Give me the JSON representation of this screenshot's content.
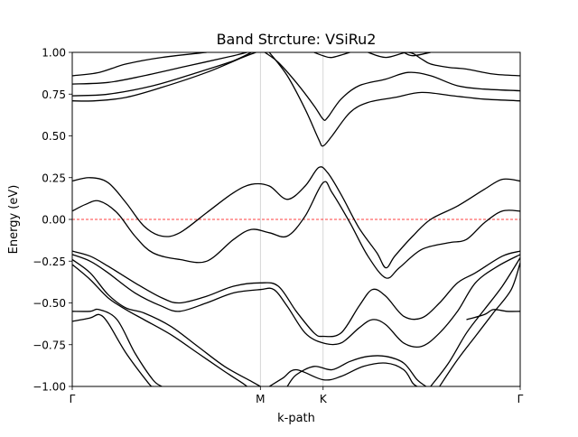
{
  "chart_data": {
    "type": "line",
    "title": "Band Strcture: VSiRu2",
    "xlabel": "k-path",
    "ylabel": "Energy (eV)",
    "xlim": [
      0,
      1
    ],
    "ylim": [
      -1.0,
      1.0
    ],
    "y_ticks": [
      "−1.00",
      "−0.75",
      "−0.50",
      "−0.25",
      "0.00",
      "0.25",
      "0.50",
      "0.75",
      "1.00"
    ],
    "y_tick_values": [
      -1.0,
      -0.75,
      -0.5,
      -0.25,
      0.0,
      0.25,
      0.5,
      0.75,
      1.0
    ],
    "kpoints": [
      {
        "label": "Γ",
        "x": 0.0
      },
      {
        "label": "M",
        "x": 0.42
      },
      {
        "label": "K",
        "x": 0.56
      },
      {
        "label": "Γ",
        "x": 1.0
      }
    ],
    "fermi_level": 0.0,
    "fermi_color": "#ff0000",
    "band_color": "#000000",
    "series": [
      {
        "values": [
          [
            0.0,
            0.86
          ],
          [
            0.06,
            0.88
          ],
          [
            0.12,
            0.93
          ],
          [
            0.2,
            0.97
          ],
          [
            0.3,
            1.0
          ]
        ]
      },
      {
        "values": [
          [
            0.0,
            0.81
          ],
          [
            0.08,
            0.82
          ],
          [
            0.16,
            0.86
          ],
          [
            0.26,
            0.92
          ],
          [
            0.36,
            0.98
          ],
          [
            0.39,
            1.0
          ]
        ]
      },
      {
        "values": [
          [
            0.0,
            0.74
          ],
          [
            0.08,
            0.75
          ],
          [
            0.18,
            0.8
          ],
          [
            0.28,
            0.88
          ],
          [
            0.36,
            0.95
          ],
          [
            0.4,
            1.0
          ]
        ]
      },
      {
        "values": [
          [
            0.0,
            0.71
          ],
          [
            0.05,
            0.71
          ],
          [
            0.12,
            0.73
          ],
          [
            0.2,
            0.79
          ],
          [
            0.3,
            0.88
          ],
          [
            0.38,
            0.97
          ],
          [
            0.41,
            1.0
          ]
        ]
      },
      {
        "values": [
          [
            0.43,
            1.0
          ],
          [
            0.46,
            0.94
          ],
          [
            0.5,
            0.82
          ],
          [
            0.54,
            0.68
          ],
          [
            0.56,
            0.6
          ],
          [
            0.57,
            0.61
          ],
          [
            0.6,
            0.72
          ],
          [
            0.64,
            0.8
          ],
          [
            0.7,
            0.84
          ],
          [
            0.75,
            0.88
          ],
          [
            0.8,
            0.86
          ],
          [
            0.86,
            0.8
          ],
          [
            0.92,
            0.78
          ],
          [
            1.0,
            0.77
          ]
        ]
      },
      {
        "values": [
          [
            0.44,
            1.0
          ],
          [
            0.48,
            0.86
          ],
          [
            0.52,
            0.66
          ],
          [
            0.55,
            0.48
          ],
          [
            0.56,
            0.44
          ],
          [
            0.58,
            0.5
          ],
          [
            0.62,
            0.64
          ],
          [
            0.66,
            0.7
          ],
          [
            0.72,
            0.73
          ],
          [
            0.78,
            0.76
          ],
          [
            0.85,
            0.74
          ],
          [
            0.92,
            0.72
          ],
          [
            1.0,
            0.71
          ]
        ]
      },
      {
        "values": [
          [
            0.54,
            1.0
          ],
          [
            0.56,
            0.98
          ],
          [
            0.58,
            0.97
          ],
          [
            0.62,
            1.0
          ]
        ]
      },
      {
        "values": [
          [
            0.66,
            1.0
          ],
          [
            0.7,
            0.97
          ],
          [
            0.75,
            1.0
          ],
          [
            0.78,
            0.96
          ],
          [
            0.8,
            0.93
          ],
          [
            0.84,
            0.91
          ],
          [
            0.88,
            0.9
          ],
          [
            0.94,
            0.87
          ],
          [
            1.0,
            0.86
          ]
        ]
      },
      {
        "values": [
          [
            0.74,
            1.0
          ],
          [
            0.76,
            0.98
          ],
          [
            0.8,
            1.0
          ]
        ]
      },
      {
        "values": [
          [
            0.0,
            0.23
          ],
          [
            0.04,
            0.25
          ],
          [
            0.08,
            0.22
          ],
          [
            0.12,
            0.1
          ],
          [
            0.16,
            -0.04
          ],
          [
            0.2,
            -0.1
          ],
          [
            0.24,
            -0.08
          ],
          [
            0.3,
            0.04
          ],
          [
            0.36,
            0.16
          ],
          [
            0.4,
            0.21
          ],
          [
            0.44,
            0.2
          ],
          [
            0.48,
            0.12
          ],
          [
            0.52,
            0.2
          ],
          [
            0.55,
            0.31
          ],
          [
            0.57,
            0.28
          ],
          [
            0.6,
            0.15
          ],
          [
            0.64,
            -0.05
          ],
          [
            0.68,
            -0.2
          ],
          [
            0.7,
            -0.29
          ],
          [
            0.72,
            -0.22
          ],
          [
            0.76,
            -0.1
          ],
          [
            0.8,
            0.0
          ],
          [
            0.86,
            0.08
          ],
          [
            0.92,
            0.18
          ],
          [
            0.96,
            0.24
          ],
          [
            1.0,
            0.23
          ]
        ]
      },
      {
        "values": [
          [
            0.0,
            0.05
          ],
          [
            0.03,
            0.09
          ],
          [
            0.06,
            0.11
          ],
          [
            0.1,
            0.04
          ],
          [
            0.14,
            -0.1
          ],
          [
            0.18,
            -0.2
          ],
          [
            0.24,
            -0.24
          ],
          [
            0.3,
            -0.25
          ],
          [
            0.36,
            -0.12
          ],
          [
            0.4,
            -0.06
          ],
          [
            0.44,
            -0.08
          ],
          [
            0.48,
            -0.1
          ],
          [
            0.52,
            0.02
          ],
          [
            0.56,
            0.22
          ],
          [
            0.58,
            0.16
          ],
          [
            0.62,
            -0.02
          ],
          [
            0.66,
            -0.22
          ],
          [
            0.7,
            -0.35
          ],
          [
            0.73,
            -0.29
          ],
          [
            0.78,
            -0.18
          ],
          [
            0.84,
            -0.14
          ],
          [
            0.88,
            -0.12
          ],
          [
            0.92,
            -0.02
          ],
          [
            0.96,
            0.05
          ],
          [
            1.0,
            0.05
          ]
        ]
      },
      {
        "values": [
          [
            0.0,
            -0.19
          ],
          [
            0.04,
            -0.22
          ],
          [
            0.08,
            -0.28
          ],
          [
            0.14,
            -0.38
          ],
          [
            0.2,
            -0.47
          ],
          [
            0.24,
            -0.5
          ],
          [
            0.3,
            -0.46
          ],
          [
            0.36,
            -0.4
          ],
          [
            0.42,
            -0.38
          ],
          [
            0.46,
            -0.4
          ],
          [
            0.5,
            -0.55
          ],
          [
            0.54,
            -0.68
          ],
          [
            0.56,
            -0.7
          ],
          [
            0.6,
            -0.68
          ],
          [
            0.64,
            -0.52
          ],
          [
            0.67,
            -0.42
          ],
          [
            0.7,
            -0.46
          ],
          [
            0.74,
            -0.58
          ],
          [
            0.78,
            -0.59
          ],
          [
            0.82,
            -0.5
          ],
          [
            0.86,
            -0.38
          ],
          [
            0.9,
            -0.32
          ],
          [
            0.96,
            -0.22
          ],
          [
            1.0,
            -0.19
          ]
        ]
      },
      {
        "values": [
          [
            0.0,
            -0.21
          ],
          [
            0.04,
            -0.25
          ],
          [
            0.08,
            -0.32
          ],
          [
            0.14,
            -0.44
          ],
          [
            0.2,
            -0.52
          ],
          [
            0.24,
            -0.55
          ],
          [
            0.3,
            -0.5
          ],
          [
            0.36,
            -0.44
          ],
          [
            0.42,
            -0.42
          ],
          [
            0.45,
            -0.42
          ],
          [
            0.48,
            -0.52
          ],
          [
            0.52,
            -0.68
          ],
          [
            0.56,
            -0.74
          ],
          [
            0.6,
            -0.74
          ],
          [
            0.64,
            -0.65
          ],
          [
            0.67,
            -0.6
          ],
          [
            0.7,
            -0.63
          ],
          [
            0.74,
            -0.74
          ],
          [
            0.78,
            -0.76
          ],
          [
            0.82,
            -0.68
          ],
          [
            0.86,
            -0.55
          ],
          [
            0.9,
            -0.38
          ],
          [
            0.95,
            -0.28
          ],
          [
            1.0,
            -0.21
          ]
        ]
      },
      {
        "values": [
          [
            0.0,
            -0.24
          ],
          [
            0.04,
            -0.32
          ],
          [
            0.08,
            -0.45
          ],
          [
            0.12,
            -0.53
          ],
          [
            0.16,
            -0.56
          ],
          [
            0.22,
            -0.64
          ],
          [
            0.28,
            -0.76
          ],
          [
            0.34,
            -0.88
          ],
          [
            0.4,
            -0.97
          ],
          [
            0.42,
            -1.0
          ]
        ]
      },
      {
        "values": [
          [
            0.0,
            -0.27
          ],
          [
            0.04,
            -0.36
          ],
          [
            0.08,
            -0.47
          ],
          [
            0.12,
            -0.54
          ],
          [
            0.16,
            -0.6
          ],
          [
            0.22,
            -0.69
          ],
          [
            0.28,
            -0.8
          ],
          [
            0.34,
            -0.91
          ],
          [
            0.38,
            -0.98
          ],
          [
            0.39,
            -1.0
          ]
        ]
      },
      {
        "values": [
          [
            0.0,
            -0.55
          ],
          [
            0.04,
            -0.55
          ],
          [
            0.06,
            -0.54
          ],
          [
            0.1,
            -0.6
          ],
          [
            0.14,
            -0.8
          ],
          [
            0.18,
            -0.96
          ],
          [
            0.2,
            -1.0
          ]
        ]
      },
      {
        "values": [
          [
            0.0,
            -0.61
          ],
          [
            0.04,
            -0.59
          ],
          [
            0.06,
            -0.57
          ],
          [
            0.08,
            -0.62
          ],
          [
            0.12,
            -0.8
          ],
          [
            0.17,
            -0.98
          ],
          [
            0.18,
            -1.0
          ]
        ]
      },
      {
        "values": [
          [
            0.48,
            -1.0
          ],
          [
            0.5,
            -0.93
          ],
          [
            0.54,
            -0.88
          ],
          [
            0.58,
            -0.9
          ],
          [
            0.62,
            -0.85
          ],
          [
            0.66,
            -0.82
          ],
          [
            0.7,
            -0.82
          ],
          [
            0.74,
            -0.86
          ],
          [
            0.77,
            -0.96
          ],
          [
            0.79,
            -1.0
          ]
        ]
      },
      {
        "values": [
          [
            0.44,
            -1.0
          ],
          [
            0.47,
            -0.95
          ],
          [
            0.5,
            -0.9
          ],
          [
            0.56,
            -0.96
          ],
          [
            0.6,
            -0.94
          ],
          [
            0.65,
            -0.88
          ],
          [
            0.7,
            -0.86
          ],
          [
            0.74,
            -0.9
          ],
          [
            0.76,
            -0.98
          ],
          [
            0.77,
            -1.0
          ]
        ]
      },
      {
        "values": [
          [
            0.8,
            -1.0
          ],
          [
            0.84,
            -0.86
          ],
          [
            0.88,
            -0.68
          ],
          [
            0.92,
            -0.54
          ],
          [
            0.96,
            -0.4
          ],
          [
            1.0,
            -0.23
          ]
        ]
      },
      {
        "values": [
          [
            0.82,
            -1.0
          ],
          [
            0.86,
            -0.84
          ],
          [
            0.9,
            -0.7
          ],
          [
            0.94,
            -0.56
          ],
          [
            0.98,
            -0.42
          ],
          [
            1.0,
            -0.26
          ]
        ]
      },
      {
        "values": [
          [
            0.88,
            -0.6
          ],
          [
            0.92,
            -0.57
          ],
          [
            0.94,
            -0.54
          ],
          [
            0.97,
            -0.55
          ],
          [
            1.0,
            -0.55
          ]
        ]
      }
    ]
  }
}
